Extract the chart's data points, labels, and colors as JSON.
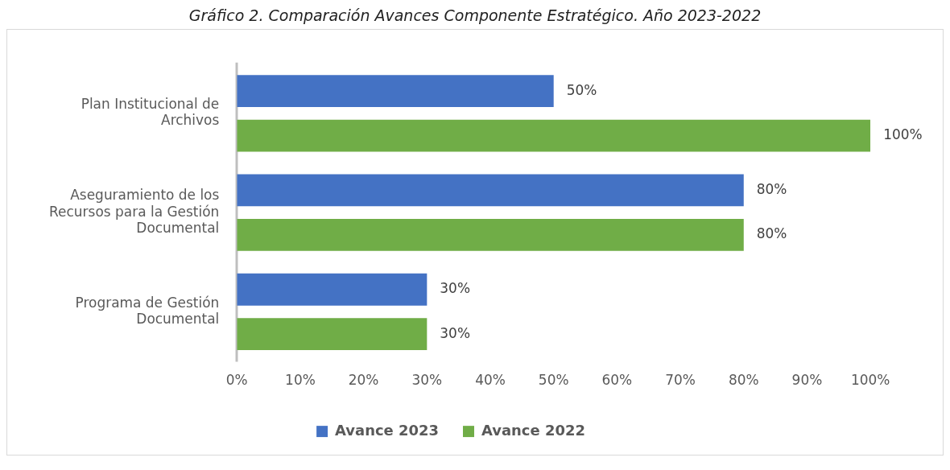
{
  "chart_data": {
    "type": "bar",
    "orientation": "horizontal",
    "title": "Gráfico 2. Comparación Avances Componente Estratégico. Año 2023-2022",
    "categories": [
      "Plan Institucional de Archivos",
      "Aseguramiento de los Recursos para la Gestión Documental",
      "Programa de Gestión Documental"
    ],
    "series": [
      {
        "name": "Avance 2023",
        "color": "#4472c4",
        "values": [
          50,
          80,
          30
        ],
        "value_labels": [
          "50%",
          "80%",
          "30%"
        ]
      },
      {
        "name": "Avance 2022",
        "color": "#70ad47",
        "values": [
          100,
          80,
          30
        ],
        "value_labels": [
          "100%",
          "80%",
          "30%"
        ]
      }
    ],
    "xlim": [
      0,
      100
    ],
    "xticks": [
      {
        "value": 0,
        "label": "0%"
      },
      {
        "value": 10,
        "label": "10%"
      },
      {
        "value": 20,
        "label": "20%"
      },
      {
        "value": 30,
        "label": "30%"
      },
      {
        "value": 40,
        "label": "40%"
      },
      {
        "value": 50,
        "label": "50%"
      },
      {
        "value": 60,
        "label": "60%"
      },
      {
        "value": 70,
        "label": "70%"
      },
      {
        "value": 80,
        "label": "80%"
      },
      {
        "value": 90,
        "label": "90%"
      },
      {
        "value": 100,
        "label": "100%"
      }
    ],
    "grid": false,
    "legend": "bottom"
  }
}
